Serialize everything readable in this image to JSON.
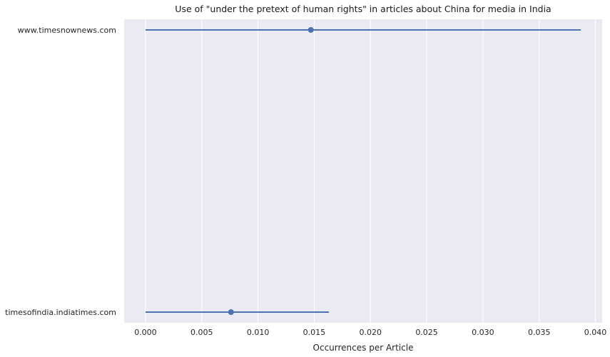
{
  "chart_data": {
    "type": "errorbar",
    "title": "Use of \"under the pretext of human rights\" in articles about China for media in India",
    "xlabel": "Occurrences per Article",
    "ylabel": "",
    "xlim": [
      -0.0019,
      0.0406
    ],
    "x_ticks": [
      "0.000",
      "0.005",
      "0.010",
      "0.015",
      "0.020",
      "0.025",
      "0.030",
      "0.035",
      "0.040"
    ],
    "grid": true,
    "categories": [
      "www.timesnownews.com",
      "timesofindia.indiatimes.com"
    ],
    "points": [
      {
        "category": "www.timesnownews.com",
        "value": 0.0147,
        "ci_low": 0.0,
        "ci_high": 0.0387
      },
      {
        "category": "timesofindia.indiatimes.com",
        "value": 0.0076,
        "ci_low": 0.0,
        "ci_high": 0.0163
      }
    ],
    "colors": {
      "background": "#eaeaf2",
      "series": "#4c72b0",
      "grid": "#ffffff"
    }
  }
}
